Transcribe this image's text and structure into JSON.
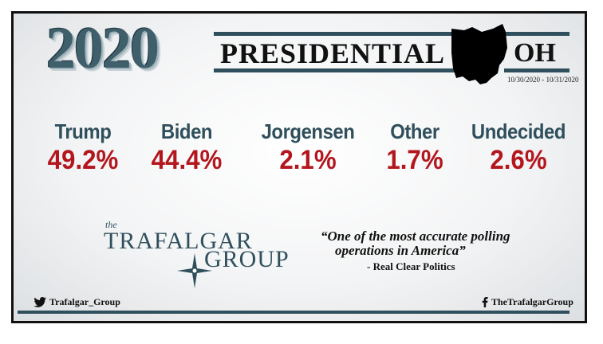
{
  "header": {
    "year": "2020",
    "title": "PRESIDENTIAL",
    "state_abbr": "OH",
    "dates": "10/30/2020 - 10/31/2020"
  },
  "candidates": [
    {
      "name": "Trump",
      "pct": "49.2%"
    },
    {
      "name": "Biden",
      "pct": "44.4%"
    },
    {
      "name": "Jorgensen",
      "pct": "2.1%"
    },
    {
      "name": "Other",
      "pct": "1.7%"
    },
    {
      "name": "Undecided",
      "pct": "2.6%"
    }
  ],
  "logo": {
    "the": "the",
    "word1": "TRAFALGAR",
    "word2": "GROUP"
  },
  "quote": {
    "text_line1": "“One of the most accurate polling",
    "text_line2": "operations in America”",
    "attribution": "- Real Clear Politics"
  },
  "social": {
    "twitter": "Trafalgar_Group",
    "facebook": "TheTrafalgarGroup"
  },
  "colors": {
    "teal": "#2f4f5c",
    "red": "#b3161d"
  }
}
